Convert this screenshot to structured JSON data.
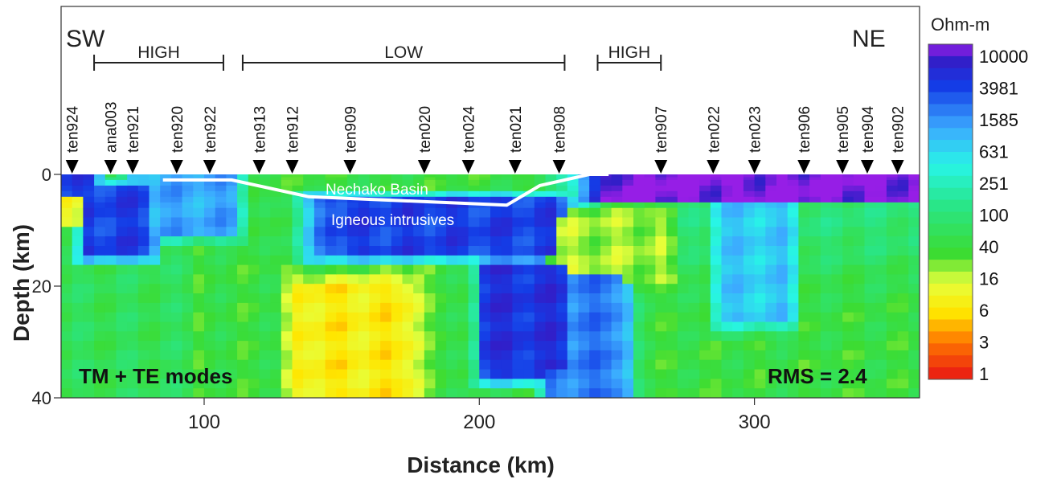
{
  "chart_data": {
    "type": "heatmap",
    "title": "",
    "xlabel": "Distance (km)",
    "ylabel": "Depth (km)",
    "xlim": [
      48,
      360
    ],
    "ylim": [
      0,
      40
    ],
    "x_ticks": [
      "100",
      "200",
      "300"
    ],
    "x_tick_values": [
      100,
      200,
      300
    ],
    "y_ticks": [
      "0",
      "20",
      "40"
    ],
    "y_tick_values": [
      0,
      20,
      40
    ],
    "direction_left": "SW",
    "direction_right": "NE",
    "colorbar": {
      "title": "Ohm-m",
      "scale": "log",
      "labels": [
        "10000",
        "3981",
        "1585",
        "631",
        "251",
        "100",
        "40",
        "16",
        "6",
        "3",
        "1"
      ]
    },
    "brackets": [
      {
        "label": "HIGH",
        "x_start": 60,
        "x_end": 107
      },
      {
        "label": "LOW",
        "x_start": 114,
        "x_end": 231
      },
      {
        "label": "HIGH",
        "x_start": 243,
        "x_end": 266
      }
    ],
    "stations": [
      {
        "name": "ten924",
        "x": 52
      },
      {
        "name": "ana003",
        "x": 66
      },
      {
        "name": "ten921",
        "x": 74
      },
      {
        "name": "ten920",
        "x": 90
      },
      {
        "name": "ten922",
        "x": 102
      },
      {
        "name": "ten913",
        "x": 120
      },
      {
        "name": "ten912",
        "x": 132
      },
      {
        "name": "ten909",
        "x": 153
      },
      {
        "name": "ten020",
        "x": 180
      },
      {
        "name": "ten024",
        "x": 196
      },
      {
        "name": "ten021",
        "x": 213
      },
      {
        "name": "ten908",
        "x": 229
      },
      {
        "name": "ten907",
        "x": 266
      },
      {
        "name": "ten022",
        "x": 285
      },
      {
        "name": "ten023",
        "x": 300
      },
      {
        "name": "ten906",
        "x": 318
      },
      {
        "name": "ten905",
        "x": 332
      },
      {
        "name": "ten904",
        "x": 341
      },
      {
        "name": "ten902",
        "x": 352
      }
    ],
    "basin_outline": [
      [
        85,
        1
      ],
      [
        110,
        1
      ],
      [
        138,
        4
      ],
      [
        210,
        5.5
      ],
      [
        222,
        2
      ],
      [
        240,
        0
      ],
      [
        247,
        0
      ]
    ],
    "annotations": {
      "basin": "Nechako Basin",
      "intrusives": "Igneous intrusives",
      "modes": "TM + TE modes",
      "rms": "RMS = 2.4"
    },
    "anomalies": [
      {
        "x": [
          48,
          58
        ],
        "z": [
          0,
          2
        ],
        "log_rho": 3.5
      },
      {
        "x": [
          60,
          78
        ],
        "z": [
          4,
          13
        ],
        "log_rho": 3.5
      },
      {
        "x": [
          78,
          108
        ],
        "z": [
          0,
          9
        ],
        "log_rho": 3.0
      },
      {
        "x": [
          148,
          225
        ],
        "z": [
          6,
          13
        ],
        "log_rho": 3.5
      },
      {
        "x": [
          250,
          360
        ],
        "z": [
          1,
          3
        ],
        "log_rho": 4.0
      },
      {
        "x": [
          205,
          228
        ],
        "z": [
          18,
          34
        ],
        "log_rho": 3.6
      },
      {
        "x": [
          228,
          250
        ],
        "z": [
          20,
          40
        ],
        "log_rho": 3.2
      },
      {
        "x": [
          290,
          310
        ],
        "z": [
          6,
          24
        ],
        "log_rho": 2.8
      },
      {
        "x": [
          230,
          264
        ],
        "z": [
          9,
          17
        ],
        "log_rho": 1.3
      },
      {
        "x": [
          236,
          242
        ],
        "z": [
          10,
          14
        ],
        "log_rho": 0.5
      },
      {
        "x": [
          138,
          172
        ],
        "z": [
          22,
          40
        ],
        "log_rho": 0.9
      },
      {
        "x": [
          48,
          52
        ],
        "z": [
          4,
          7
        ],
        "log_rho": 1.0
      }
    ]
  }
}
